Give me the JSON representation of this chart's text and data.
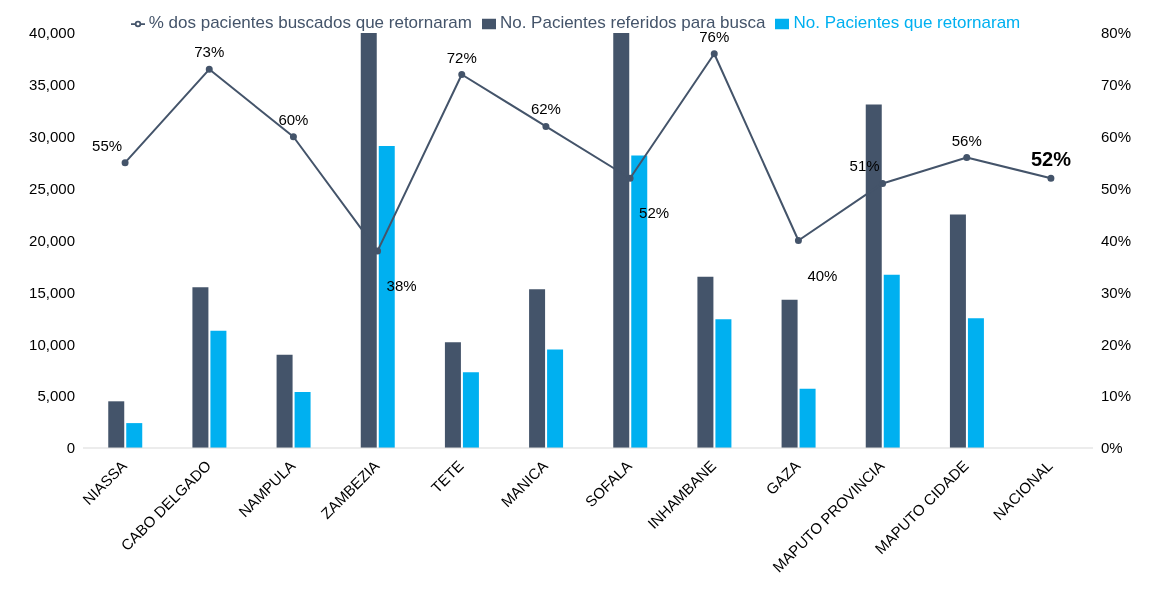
{
  "chart_data": {
    "type": "bar",
    "categories": [
      "NIASSA",
      "CABO DELGADO",
      "NAMPULA",
      "ZAMBEZIA",
      "TETE",
      "MANICA",
      "SOFALA",
      "INHAMBANE",
      "GAZA",
      "MAPUTO PROVINCIA",
      "MAPUTO CIDADE",
      "NACIONAL"
    ],
    "series": [
      {
        "name": "No. Pacientes  referidos para busca",
        "color": "#44546a",
        "values": [
          4500,
          15500,
          9000,
          40000,
          10200,
          15300,
          40000,
          16500,
          14300,
          33100,
          22500,
          null
        ]
      },
      {
        "name": "No. Pacientes que retornaram",
        "color": "#00b0f0",
        "values": [
          2400,
          11300,
          5400,
          29100,
          7300,
          9500,
          28200,
          12400,
          5700,
          16700,
          12500,
          null
        ]
      },
      {
        "name": "% dos pacientes buscados que retornaram",
        "type": "line",
        "axis": "y2",
        "color": "#44546a",
        "marker": "circle",
        "values": [
          55,
          73,
          60,
          38,
          72,
          62,
          52,
          76,
          40,
          51,
          56,
          52
        ],
        "value_labels": [
          "55%",
          "73%",
          "60%",
          "38%",
          "72%",
          "62%",
          "52%",
          "76%",
          "40%",
          "51%",
          "56%",
          "52%"
        ]
      }
    ],
    "ylim": [
      0,
      40000
    ],
    "yticks": [
      0,
      {
        "value": 5000,
        "label": "5,000"
      },
      {
        "value": 10000,
        "label": "10,000"
      },
      {
        "value": 15000,
        "label": "15,000"
      },
      {
        "value": 20000,
        "label": "20,000"
      },
      {
        "value": 25000,
        "label": "25,000"
      },
      {
        "value": 30000,
        "label": "30,000"
      },
      {
        "value": 35000,
        "label": "35,000"
      },
      {
        "value": 40000,
        "label": "40,000"
      }
    ],
    "y2lim": [
      0,
      80
    ],
    "y2ticks": [
      {
        "value": 0,
        "label": "0%"
      },
      {
        "value": 10,
        "label": "10%"
      },
      {
        "value": 20,
        "label": "20%"
      },
      {
        "value": 30,
        "label": "30%"
      },
      {
        "value": 40,
        "label": "40%"
      },
      {
        "value": 50,
        "label": "50%"
      },
      {
        "value": 60,
        "label": "60%"
      },
      {
        "value": 70,
        "label": "70%"
      },
      {
        "value": 80,
        "label": "80%"
      }
    ],
    "legend": "top"
  }
}
